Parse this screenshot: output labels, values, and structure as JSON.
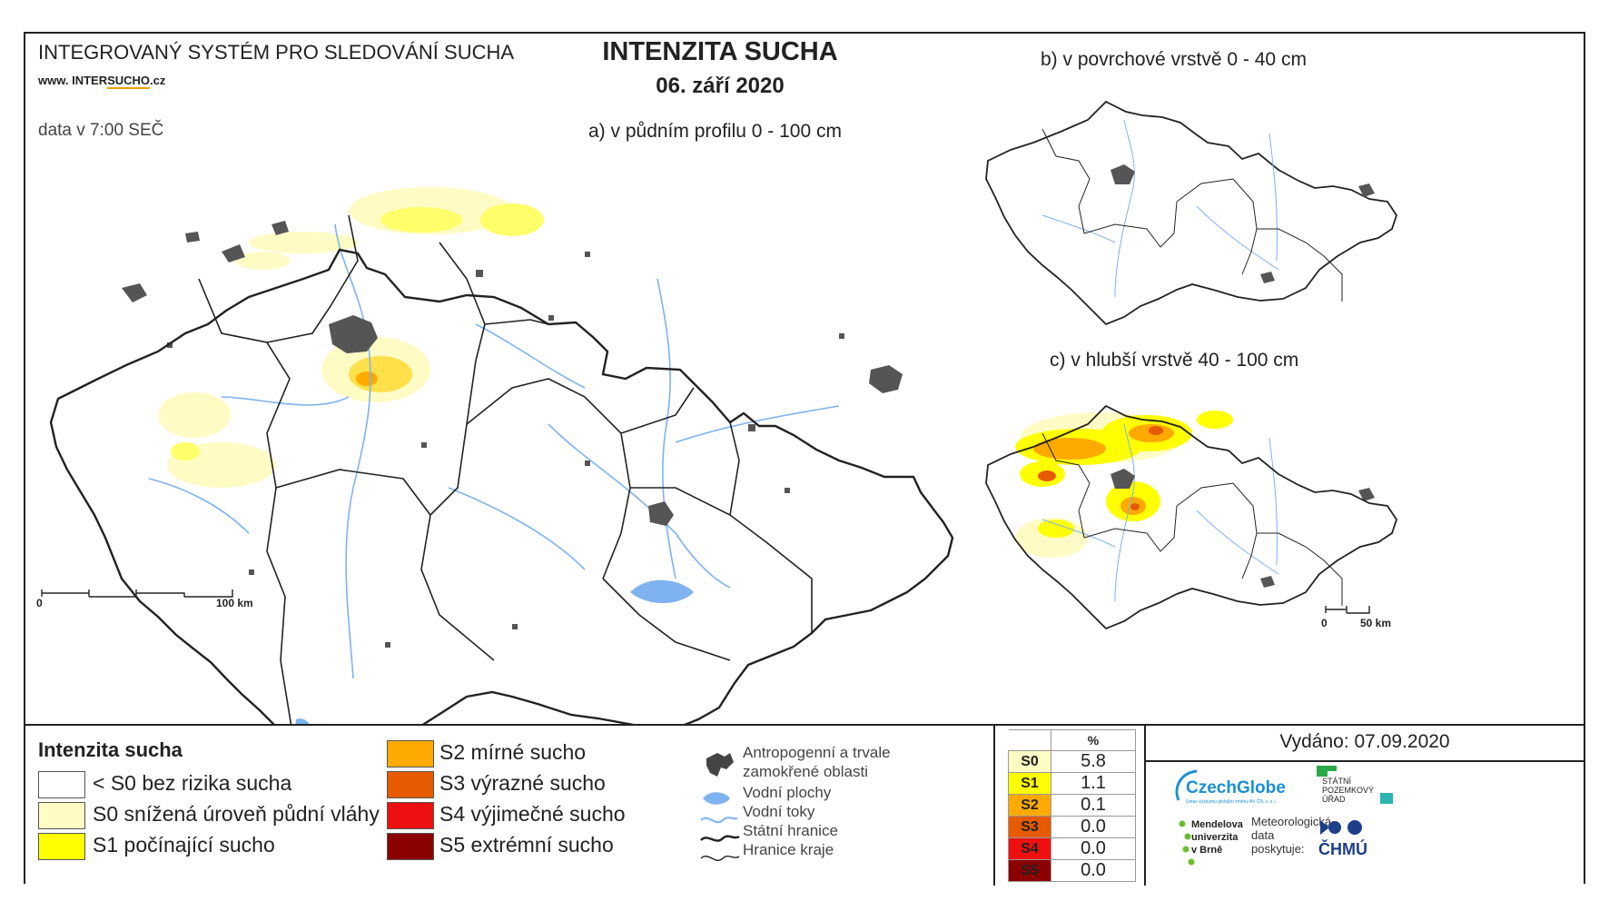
{
  "header": {
    "system_title": "INTEGROVANÝ SYSTÉM PRO SLEDOVÁNÍ SUCHA",
    "website_prefix": "www. INTER",
    "website_brand": "SUCHO",
    "website_suffix": ".cz",
    "data_time": "data v 7:00 SEČ",
    "main_title": "INTENZITA SUCHA",
    "date": "06. září 2020"
  },
  "maps": {
    "a_label": "a) v půdním profilu 0 - 100 cm",
    "b_label": "b) v povrchové vrstvě 0 - 40 cm",
    "c_label": "c) v hlubší vrstvě 40 - 100 cm",
    "scale_a": {
      "zero": "0",
      "end": "100 km"
    },
    "scale_c": {
      "zero": "0",
      "end": "50 km"
    }
  },
  "legend": {
    "title": "Intenzita sucha",
    "classes": [
      {
        "label": "< S0 bez rizika sucha",
        "color": "#ffffff"
      },
      {
        "label": "S0 snížená úroveň půdní vláhy",
        "color": "#fffbc4"
      },
      {
        "label": "S1 počínající sucho",
        "color": "#ffff00"
      },
      {
        "label": "S2 mírné sucho",
        "color": "#ffaa00"
      },
      {
        "label": "S3 výrazné sucho",
        "color": "#e65a00"
      },
      {
        "label": "S4 výjimečné sucho",
        "color": "#ee1010"
      },
      {
        "label": "S5 extrémní sucho",
        "color": "#8b0000"
      }
    ],
    "symbols": {
      "urban_line1": "Antropogenní a trvale",
      "urban_line2": "zamokřené oblasti",
      "water_bodies": "Vodní plochy",
      "rivers": "Vodní toky",
      "state_border": "Státní hranice",
      "region_border": "Hranice kraje"
    }
  },
  "stats": {
    "header": "%",
    "rows": [
      {
        "code": "S0",
        "value": "5.8",
        "color": "#fffbc4"
      },
      {
        "code": "S1",
        "value": "1.1",
        "color": "#ffff00"
      },
      {
        "code": "S2",
        "value": "0.1",
        "color": "#ffaa00"
      },
      {
        "code": "S3",
        "value": "0.0",
        "color": "#e65a00"
      },
      {
        "code": "S4",
        "value": "0.0",
        "color": "#ee1010"
      },
      {
        "code": "S5",
        "value": "0.0",
        "color": "#8b0000"
      }
    ]
  },
  "issued": "Vydáno: 07.09.2020",
  "logos": {
    "czechglobe": "CzechGlobe",
    "czechglobe_sub": "Ústav výzkumu globální změny AV ČR, v. v. i.",
    "spu_line1": "STÁTNÍ",
    "spu_line2": "POZEMKOVÝ",
    "spu_line3": "ÚŘAD",
    "mendel_line1": "Mendelova",
    "mendel_line2": "univerzita",
    "mendel_line3": "v Brně",
    "meteo_line1": "Meteorologická",
    "meteo_line2": "data",
    "meteo_line3": "poskytuje:",
    "chmu": "ČHMÚ"
  },
  "colors": {
    "border": "#222222",
    "river": "#7fb2f0",
    "urban": "#444444",
    "czechglobe_blue": "#1a8fd6",
    "mendel_green": "#6abf2e",
    "spu_green": "#2aa84a",
    "chmu_blue": "#1d3f8a"
  }
}
